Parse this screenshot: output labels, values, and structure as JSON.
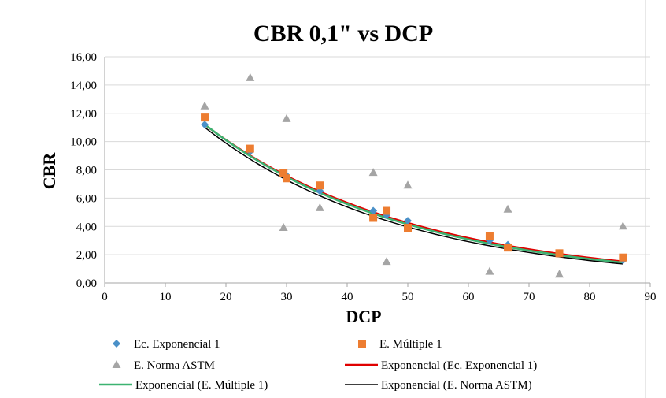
{
  "chart_data": {
    "type": "scatter",
    "title": "CBR  0,1\" vs DCP",
    "xlabel": "DCP",
    "ylabel": "CBR",
    "xlim": [
      0,
      90
    ],
    "ylim": [
      0,
      16
    ],
    "x_ticks": [
      "0",
      "10",
      "20",
      "30",
      "40",
      "50",
      "60",
      "70",
      "80",
      "90"
    ],
    "y_ticks": [
      "0,00",
      "2,00",
      "4,00",
      "6,00",
      "8,00",
      "10,00",
      "12,00",
      "14,00",
      "16,00"
    ],
    "grid": "horizontal",
    "legend_position": "bottom",
    "series": [
      {
        "name": "Ec. Exponencial 1",
        "kind": "points",
        "marker": "diamond",
        "color": "#4a90c8",
        "points": [
          [
            16.5,
            11.2
          ],
          [
            24,
            9.3
          ],
          [
            29.5,
            7.8
          ],
          [
            30,
            7.6
          ],
          [
            35.5,
            6.5
          ],
          [
            44.3,
            5.1
          ],
          [
            46.5,
            4.8
          ],
          [
            50,
            4.4
          ],
          [
            63.5,
            3.0
          ],
          [
            66.5,
            2.7
          ],
          [
            75,
            2.1
          ],
          [
            85.5,
            1.6
          ]
        ]
      },
      {
        "name": "E. Múltiple 1",
        "kind": "points",
        "marker": "square",
        "color": "#ed7d31",
        "points": [
          [
            16.5,
            11.7
          ],
          [
            24,
            9.5
          ],
          [
            29.5,
            7.8
          ],
          [
            30,
            7.4
          ],
          [
            35.5,
            6.9
          ],
          [
            44.3,
            4.6
          ],
          [
            46.5,
            5.1
          ],
          [
            50,
            3.9
          ],
          [
            63.5,
            3.3
          ],
          [
            66.5,
            2.5
          ],
          [
            75,
            2.1
          ],
          [
            85.5,
            1.8
          ]
        ]
      },
      {
        "name": "E. Norma ASTM",
        "kind": "points",
        "marker": "triangle",
        "color": "#a5a5a5",
        "points": [
          [
            16.5,
            12.5
          ],
          [
            24,
            14.5
          ],
          [
            29.5,
            3.9
          ],
          [
            30,
            11.6
          ],
          [
            35.5,
            5.3
          ],
          [
            44.3,
            7.8
          ],
          [
            46.5,
            1.5
          ],
          [
            50,
            6.9
          ],
          [
            63.5,
            0.8
          ],
          [
            66.5,
            5.2
          ],
          [
            75,
            0.6
          ],
          [
            85.5,
            4.0
          ]
        ]
      },
      {
        "name": "Exponencial (Ec. Exponencial 1)",
        "kind": "trend",
        "color": "#e00000",
        "x": [
          16.5,
          85.5
        ],
        "a": 18.06,
        "b": -0.02897
      },
      {
        "name": "Exponencial (E. Múltiple 1)",
        "kind": "trend",
        "color": "#3cb371",
        "x": [
          16.5,
          85.5
        ],
        "a": 18.3,
        "b": -0.0297
      },
      {
        "name": "Exponencial (E. Norma ASTM)",
        "kind": "trend",
        "color": "#000000",
        "x": [
          16.5,
          85.5
        ],
        "a": 18.2,
        "b": -0.0305
      }
    ]
  }
}
